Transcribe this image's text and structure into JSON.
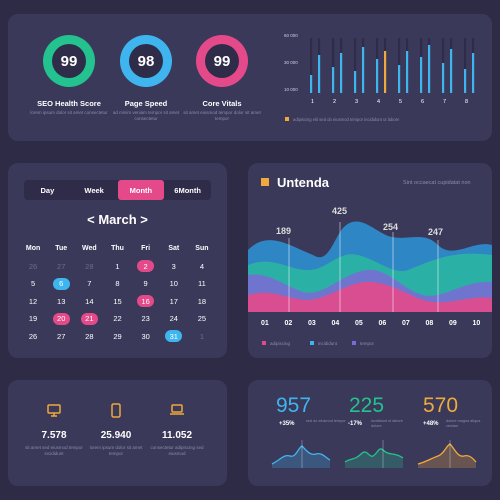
{
  "seo": {
    "gauges": [
      {
        "value": "99",
        "title": "SEO Health Score",
        "sub": "lorem ipsum dolor sit amet consectetur",
        "color": "#23c28f"
      },
      {
        "value": "98",
        "title": "Page Speed",
        "sub": "ad minim veniam tempor sit amet consectetur",
        "color": "#3fb5f0"
      },
      {
        "value": "99",
        "title": "Core Vitals",
        "sub": "sit amet eiusmod tempor dolor sit amet tempor",
        "color": "#e44a8a"
      }
    ]
  },
  "bar_chart": {
    "y_ticks": [
      "60 000",
      "30 000",
      "10 000"
    ],
    "x_ticks": [
      "1",
      "2",
      "3",
      "4",
      "5",
      "6",
      "7",
      "8"
    ],
    "legend": "adipiscing elit sed do eiusmod tempor incididunt ut labore",
    "highlight": "#f0a93c"
  },
  "calendar": {
    "tabs": [
      "Day",
      "Week",
      "Month",
      "6Month"
    ],
    "active_tab": "Month",
    "month": "< March >",
    "weekdays": [
      "Mon",
      "Tue",
      "Wed",
      "Thu",
      "Fri",
      "Sat",
      "Sun"
    ],
    "weeks": [
      [
        "26",
        "27",
        "28",
        "1",
        "2",
        "3",
        "4"
      ],
      [
        "5",
        "6",
        "7",
        "8",
        "9",
        "10",
        "11"
      ],
      [
        "12",
        "13",
        "14",
        "15",
        "16",
        "17",
        "18"
      ],
      [
        "19",
        "20",
        "21",
        "22",
        "23",
        "24",
        "25"
      ],
      [
        "26",
        "27",
        "28",
        "29",
        "30",
        "31",
        "1"
      ]
    ]
  },
  "area_chart": {
    "title": "Untenda",
    "subtitle": "Sint occaecat cupidatat non",
    "peaks": [
      "189",
      "425",
      "254",
      "247"
    ],
    "x_ticks": [
      "01",
      "02",
      "03",
      "04",
      "05",
      "06",
      "07",
      "08",
      "09",
      "10"
    ],
    "legend": [
      "adipiscing",
      "incididunt",
      "tempor"
    ],
    "legend_colors": [
      "#e44a8a",
      "#3fb5f0",
      "#7b6bd6"
    ]
  },
  "devices": [
    {
      "icon": "monitor-icon",
      "value": "7.578",
      "desc": "sit amet sed eiusmod tempor incididunt"
    },
    {
      "icon": "phone-icon",
      "value": "25.940",
      "desc": "lorem ipsum dolor sit amet tempor"
    },
    {
      "icon": "laptop-icon",
      "value": "11.052",
      "desc": "consectetur adipiscing sed eiusmod"
    }
  ],
  "kpis": [
    {
      "value": "957",
      "pct": "+35%",
      "desc": "sed do eiusmod tempor",
      "color": "#3fb5f0"
    },
    {
      "value": "225",
      "pct": "-17%",
      "desc": "incididunt ut labore dolore",
      "color": "#23c28f"
    },
    {
      "value": "570",
      "pct": "+48%",
      "desc": "dolore magna aliqua veniam",
      "color": "#f0a93c"
    }
  ]
}
